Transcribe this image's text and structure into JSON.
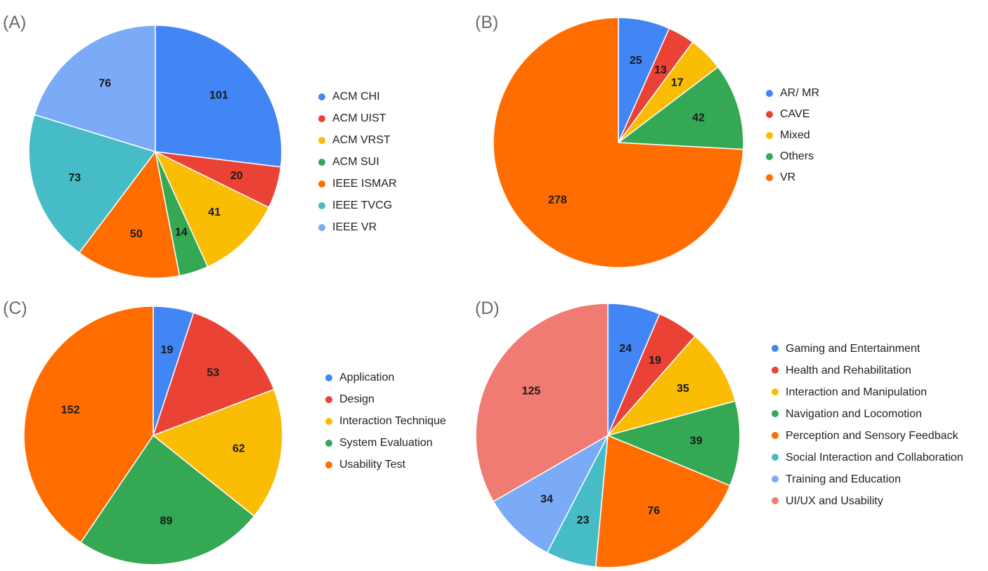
{
  "chart_data": [
    {
      "type": "pie",
      "panel_label": "(A)",
      "categories": [
        "ACM CHI",
        "ACM UIST",
        "ACM VRST",
        "ACM SUI",
        "IEEE ISMAR",
        "IEEE TVCG",
        "IEEE VR"
      ],
      "values": [
        101,
        20,
        41,
        14,
        50,
        73,
        76
      ],
      "labels": [
        "101",
        "20",
        "41",
        "14",
        "50",
        "73",
        "76"
      ],
      "colors": [
        "#4285F4",
        "#EA4335",
        "#FBBC04",
        "#34A853",
        "#FF6D01",
        "#46BDC6",
        "#7BAAF7"
      ],
      "legend_position": "right"
    },
    {
      "type": "pie",
      "panel_label": "(B)",
      "categories": [
        "AR/ MR",
        "CAVE",
        "Mixed",
        "Others",
        "VR"
      ],
      "values": [
        25,
        13,
        17,
        42,
        278
      ],
      "labels": [
        "25",
        "13",
        "17",
        "42",
        "278"
      ],
      "colors": [
        "#4285F4",
        "#EA4335",
        "#FBBC04",
        "#34A853",
        "#FF6D01"
      ],
      "legend_position": "right"
    },
    {
      "type": "pie",
      "panel_label": "(C)",
      "categories": [
        "Application",
        "Design",
        "Interaction Technique",
        "System Evaluation",
        "Usability Test"
      ],
      "values": [
        19,
        53,
        62,
        89,
        152
      ],
      "labels": [
        "19",
        "53",
        "62",
        "89",
        "152"
      ],
      "colors": [
        "#4285F4",
        "#EA4335",
        "#FBBC04",
        "#34A853",
        "#FF6D01"
      ],
      "legend_position": "right"
    },
    {
      "type": "pie",
      "panel_label": "(D)",
      "categories": [
        "Gaming and Entertainment",
        "Health and Rehabilitation",
        "Interaction and Manipulation",
        "Navigation and Locomotion",
        "Perception and Sensory Feedback",
        "Social Interaction and Collaboration",
        "Training and Education",
        "UI/UX and Usability"
      ],
      "values": [
        24,
        19,
        35,
        39,
        76,
        23,
        34,
        125
      ],
      "labels": [
        "24",
        "19",
        "35",
        "39",
        "76",
        "23",
        "34",
        "125"
      ],
      "colors": [
        "#4285F4",
        "#EA4335",
        "#FBBC04",
        "#34A853",
        "#FF6D01",
        "#46BDC6",
        "#7BAAF7",
        "#F07B72"
      ],
      "legend_position": "right"
    }
  ]
}
